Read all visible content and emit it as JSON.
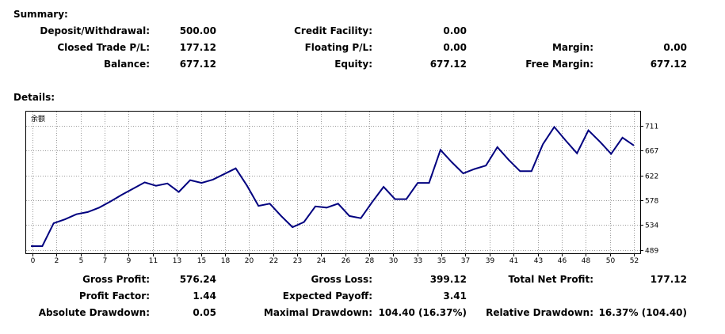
{
  "summary": {
    "title": "Summary:",
    "deposit_withdrawal": {
      "label": "Deposit/Withdrawal:",
      "value": "500.00"
    },
    "credit_facility": {
      "label": "Credit Facility:",
      "value": "0.00"
    },
    "closed_trade_pl": {
      "label": "Closed Trade P/L:",
      "value": "177.12"
    },
    "floating_pl": {
      "label": "Floating P/L:",
      "value": "0.00"
    },
    "margin": {
      "label": "Margin:",
      "value": "0.00"
    },
    "balance": {
      "label": "Balance:",
      "value": "677.12"
    },
    "equity": {
      "label": "Equity:",
      "value": "677.12"
    },
    "free_margin": {
      "label": "Free Margin:",
      "value": "677.12"
    }
  },
  "details": {
    "title": "Details:",
    "gross_profit": {
      "label": "Gross Profit:",
      "value": "576.24"
    },
    "gross_loss": {
      "label": "Gross Loss:",
      "value": "399.12"
    },
    "total_net_profit": {
      "label": "Total Net Profit:",
      "value": "177.12"
    },
    "profit_factor": {
      "label": "Profit Factor:",
      "value": "1.44"
    },
    "expected_payoff": {
      "label": "Expected Payoff:",
      "value": "3.41"
    },
    "absolute_drawdown": {
      "label": "Absolute Drawdown:",
      "value": "0.05"
    },
    "maximal_drawdown": {
      "label": "Maximal Drawdown:",
      "value": "104.40 (16.37%)"
    },
    "relative_drawdown": {
      "label": "Relative Drawdown:",
      "value": "16.37% (104.40)"
    }
  },
  "chart_data": {
    "type": "line",
    "series_label": "余额",
    "x_ticks": [
      "0",
      "2",
      "5",
      "7",
      "9",
      "11",
      "13",
      "15",
      "18",
      "20",
      "22",
      "23",
      "24",
      "26",
      "28",
      "30",
      "33",
      "35",
      "37",
      "39",
      "41",
      "43",
      "46",
      "48",
      "50",
      "52"
    ],
    "y_ticks": [
      "711",
      "667",
      "622",
      "578",
      "534",
      "489"
    ],
    "ylim": [
      489,
      711
    ],
    "x": [
      0,
      1,
      2,
      3,
      4,
      5,
      6,
      7,
      8,
      9,
      10,
      11,
      12,
      13,
      14,
      15,
      16,
      17,
      18,
      19,
      20,
      21,
      22,
      23,
      24,
      25,
      26,
      27,
      28,
      29,
      30,
      31,
      32,
      33,
      34,
      35,
      36,
      37,
      38,
      39,
      40,
      41,
      42,
      43,
      44,
      45,
      46,
      47,
      48,
      49,
      50,
      51,
      52,
      53
    ],
    "values": [
      496,
      496,
      537,
      544,
      553,
      557,
      565,
      576,
      588,
      599,
      610,
      604,
      608,
      593,
      614,
      609,
      615,
      625,
      635,
      604,
      568,
      572,
      550,
      530,
      539,
      567,
      565,
      572,
      550,
      546,
      575,
      602,
      580,
      580,
      609,
      609,
      668,
      646,
      626,
      634,
      640,
      673,
      650,
      630,
      630,
      678,
      709,
      685,
      662,
      703,
      683,
      661,
      690,
      676
    ],
    "line_color": "#00007f",
    "grid_color": "#9a9a9a"
  }
}
